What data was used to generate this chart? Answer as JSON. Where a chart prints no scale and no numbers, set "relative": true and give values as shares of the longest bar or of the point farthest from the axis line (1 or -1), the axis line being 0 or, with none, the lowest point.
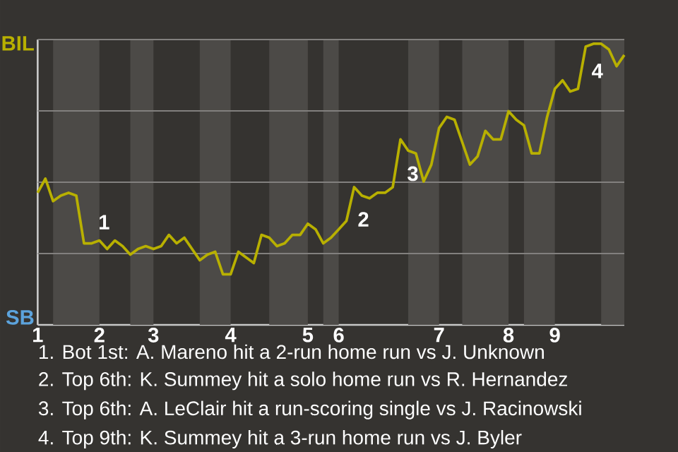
{
  "chart_data": {
    "type": "line",
    "relative": true,
    "categories": [
      "1",
      null,
      null,
      null,
      null,
      null,
      null,
      null,
      "2",
      null,
      null,
      null,
      null,
      null,
      null,
      "3",
      null,
      null,
      null,
      null,
      null,
      null,
      null,
      null,
      null,
      "4",
      null,
      null,
      null,
      null,
      null,
      null,
      null,
      null,
      null,
      "5",
      null,
      null,
      null,
      "6",
      null,
      null,
      null,
      null,
      null,
      null,
      null,
      null,
      null,
      null,
      null,
      null,
      "7",
      null,
      null,
      null,
      null,
      null,
      null,
      null,
      null,
      "8",
      null,
      null,
      null,
      null,
      null,
      "9",
      null,
      null,
      null,
      null,
      null,
      null,
      null,
      null,
      null
    ],
    "series": [
      {
        "color": "#b8b000",
        "values": [
          0.47,
          0.52,
          0.44,
          0.46,
          0.47,
          0.46,
          0.29,
          0.29,
          0.3,
          0.27,
          0.3,
          0.28,
          0.25,
          0.27,
          0.28,
          0.27,
          0.28,
          0.32,
          0.29,
          0.31,
          0.27,
          0.23,
          0.25,
          0.26,
          0.18,
          0.18,
          0.26,
          0.24,
          0.22,
          0.32,
          0.31,
          0.28,
          0.29,
          0.32,
          0.32,
          0.36,
          0.34,
          0.29,
          0.31,
          0.34,
          0.37,
          0.49,
          0.46,
          0.45,
          0.47,
          0.47,
          0.49,
          0.66,
          0.62,
          0.61,
          0.51,
          0.57,
          0.7,
          0.74,
          0.73,
          0.65,
          0.57,
          0.6,
          0.69,
          0.66,
          0.66,
          0.76,
          0.73,
          0.71,
          0.61,
          0.61,
          0.74,
          0.84,
          0.87,
          0.83,
          0.84,
          0.99,
          1,
          1,
          0.98,
          0.92,
          0.96
        ]
      }
    ],
    "grid": "y",
    "annotations": [
      "BIL",
      "SB",
      "1",
      "2",
      "3",
      "4",
      "1. Bot 1st: A. Mareno hit a 2-run home run vs J. Unknown",
      "2. Top 6th: K. Summey hit a solo home run vs R. Hernandez",
      "3. Top 6th: A. LeClair hit a run-scoring single vs J. Racinowski",
      "4. Top 9th: K. Summey hit a 3-run home run vs J. Byler"
    ]
  }
}
